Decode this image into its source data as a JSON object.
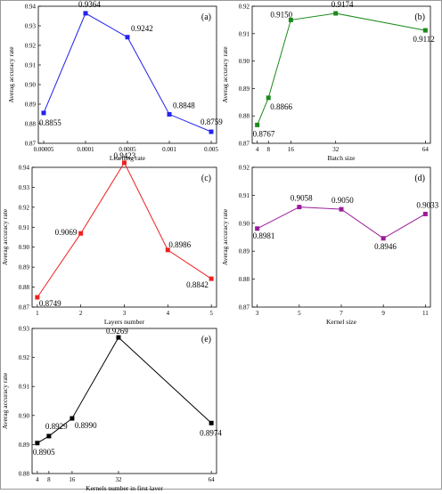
{
  "chart_data": [
    {
      "type": "line",
      "panel_label": "(a)",
      "color": "#2222ee",
      "xlabel": "Learning rate",
      "ylabel": "Averag accuracy rate",
      "x_scale": "categorical",
      "x_ticks": [
        "0.00005",
        "0.0001",
        "0.0005",
        "0.001",
        "0.005"
      ],
      "x": [
        "0.00005",
        "0.0001",
        "0.0005",
        "0.001",
        "0.005"
      ],
      "values": [
        0.8855,
        0.9364,
        0.9242,
        0.8848,
        0.8759
      ],
      "data_labels": [
        "0.8855",
        "0.9364",
        "0.9242",
        "0.8848",
        "0.8759"
      ],
      "ylim": [
        0.87,
        0.94
      ],
      "y_ticks": [
        "0.87",
        "0.88",
        "0.89",
        "0.90",
        "0.91",
        "0.92",
        "0.93",
        "0.94"
      ]
    },
    {
      "type": "line",
      "panel_label": "(b)",
      "color": "#1a8a1a",
      "xlabel": "Batch size",
      "ylabel": "Averag accuracy rate",
      "x_scale": "linear",
      "x_ticks": [
        "4",
        "8",
        "16",
        "32",
        "64"
      ],
      "x": [
        4,
        8,
        16,
        32,
        64
      ],
      "values": [
        0.8767,
        0.8866,
        0.915,
        0.9174,
        0.9112
      ],
      "data_labels": [
        "0.8767",
        "0.8866",
        "0.9150",
        "0.9174",
        "0.9112"
      ],
      "ylim": [
        0.87,
        0.92
      ],
      "y_ticks": [
        "0.87",
        "0.88",
        "0.89",
        "0.90",
        "0.91",
        "0.92"
      ]
    },
    {
      "type": "line",
      "panel_label": "(c)",
      "color": "#ee2222",
      "xlabel": "Layers number",
      "ylabel": "Averag accuracy rate",
      "x_scale": "linear",
      "x_ticks": [
        "1",
        "2",
        "3",
        "4",
        "5"
      ],
      "x": [
        1,
        2,
        3,
        4,
        5
      ],
      "values": [
        0.8749,
        0.9069,
        0.9423,
        0.8986,
        0.8842
      ],
      "data_labels": [
        "0.8749",
        "0.9069",
        "0.9423",
        "0.8986",
        "0.8842"
      ],
      "ylim": [
        0.87,
        0.94
      ],
      "y_ticks": [
        "0.87",
        "0.88",
        "0.89",
        "0.90",
        "0.91",
        "0.92",
        "0.93",
        "0.94"
      ]
    },
    {
      "type": "line",
      "panel_label": "(d)",
      "color": "#9a1a9a",
      "xlabel": "Kernel size",
      "ylabel": "Averag accuracy rate",
      "x_scale": "linear",
      "x_ticks": [
        "3",
        "5",
        "7",
        "9",
        "11"
      ],
      "x": [
        3,
        5,
        7,
        9,
        11
      ],
      "values": [
        0.8981,
        0.9058,
        0.905,
        0.8946,
        0.9033
      ],
      "data_labels": [
        "0.8981",
        "0.9058",
        "0.9050",
        "0.8946",
        "0.9033"
      ],
      "ylim": [
        0.87,
        0.92
      ],
      "y_ticks": [
        "0.87",
        "0.88",
        "0.89",
        "0.90",
        "0.91",
        "0.92"
      ]
    },
    {
      "type": "line",
      "panel_label": "(e)",
      "color": "#000000",
      "xlabel": "Kernels number in first layer",
      "ylabel": "Averag accuracy rate",
      "x_scale": "linear",
      "x_ticks": [
        "4",
        "8",
        "16",
        "32",
        "64"
      ],
      "x": [
        4,
        8,
        16,
        32,
        64
      ],
      "values": [
        0.8905,
        0.8929,
        0.899,
        0.9269,
        0.8974
      ],
      "data_labels": [
        "0.8905",
        "0.8929",
        "0.8990",
        "0.9269",
        "0.8974"
      ],
      "ylim": [
        0.88,
        0.93
      ],
      "y_ticks": [
        "0.88",
        "0.89",
        "0.90",
        "0.91",
        "0.92",
        "0.93"
      ]
    }
  ]
}
